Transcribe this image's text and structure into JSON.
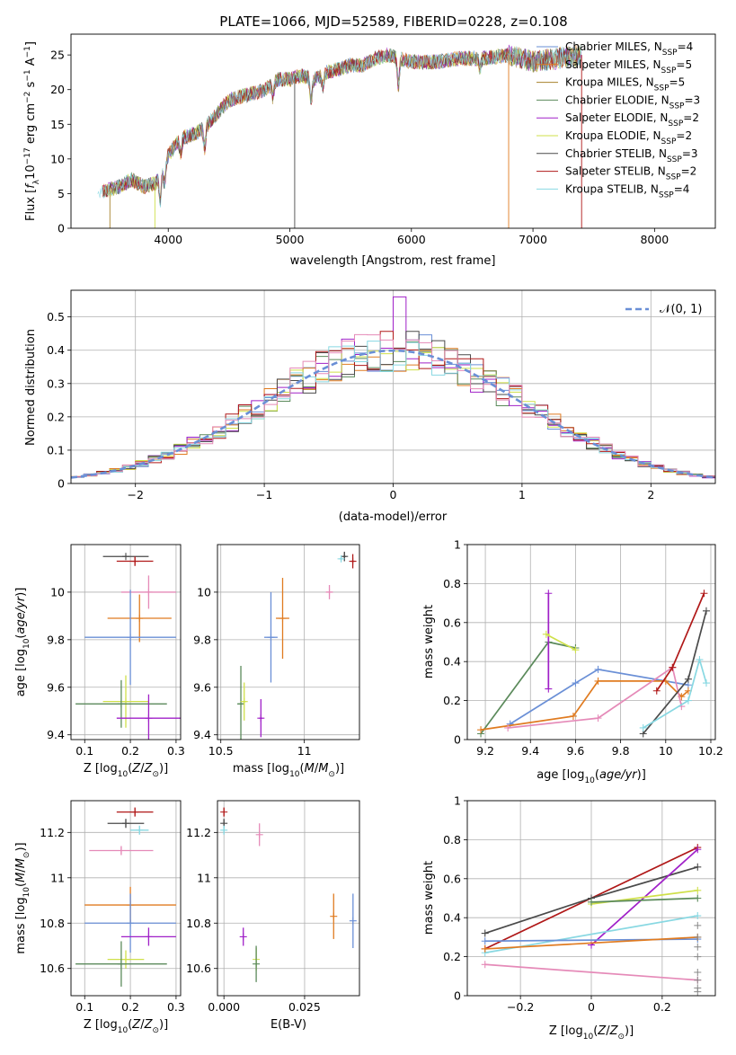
{
  "figure": {
    "title": "PLATE=1066, MJD=52589, FIBERID=0228, z=0.108",
    "series_colors": {
      "Chabrier MILES": "#6a8fd6",
      "Salpeter MILES": "#e07b20",
      "Kroupa MILES": "#a7822c",
      "Chabrier ELODIE": "#5b8a5b",
      "Salpeter ELODIE": "#a020c8",
      "Kroupa ELODIE": "#cfe04a",
      "Chabrier STELIB": "#4a4a4a",
      "Salpeter STELIB": "#b01818",
      "Kroupa STELIB": "#88d8e2",
      "pink": "#e58ab8"
    }
  },
  "chart_data": [
    {
      "id": "spectrum",
      "type": "line",
      "xlabel": "wavelength [Angstrom, rest frame]",
      "ylabel": "Flux [f_λ10^-17 erg cm^-2 s^-1 A^-1]",
      "xlim": [
        3200,
        8500
      ],
      "ylim": [
        0,
        28
      ],
      "xticks": [
        4000,
        5000,
        6000,
        7000,
        8000
      ],
      "yticks": [
        0,
        5,
        10,
        15,
        20,
        25
      ],
      "legend_position": "upper right",
      "legend": [
        {
          "name": "Chabrier MILES",
          "sub": "SSP",
          "n": 4,
          "color": "#6a8fd6"
        },
        {
          "name": "Salpeter MILES",
          "sub": "SSP",
          "n": 5,
          "color": "#e07b20"
        },
        {
          "name": "Kroupa MILES",
          "sub": "SSP",
          "n": 5,
          "color": "#a7822c"
        },
        {
          "name": "Chabrier ELODIE",
          "sub": "SSP",
          "n": 3,
          "color": "#5b8a5b"
        },
        {
          "name": "Salpeter ELODIE",
          "sub": "SSP",
          "n": 2,
          "color": "#a020c8"
        },
        {
          "name": "Kroupa ELODIE",
          "sub": "SSP",
          "n": 2,
          "color": "#cfe04a"
        },
        {
          "name": "Chabrier STELIB",
          "sub": "SSP",
          "n": 3,
          "color": "#4a4a4a"
        },
        {
          "name": "Salpeter STELIB",
          "sub": "SSP",
          "n": 2,
          "color": "#b01818"
        },
        {
          "name": "Kroupa STELIB",
          "sub": "SSP",
          "n": 4,
          "color": "#88d8e2"
        }
      ],
      "continuum": {
        "x": [
          3400,
          3500,
          3600,
          3700,
          3800,
          3900,
          4000,
          4100,
          4200,
          4300,
          4400,
          4500,
          4600,
          4700,
          4800,
          4900,
          5000,
          5100,
          5200,
          5300,
          5400,
          5500,
          5600,
          5700,
          5800,
          5900,
          6000,
          6200,
          6400,
          6600,
          6800,
          7000,
          7200,
          7400
        ],
        "y": [
          5.0,
          5.5,
          6.0,
          7.0,
          6.0,
          6.5,
          10.5,
          13.0,
          13.5,
          14.5,
          16.5,
          18.5,
          19.0,
          19.5,
          20.0,
          21.5,
          21.5,
          22.0,
          21.5,
          22.5,
          23.0,
          23.5,
          23.5,
          24.5,
          25.0,
          24.5,
          24.0,
          24.0,
          24.5,
          24.5,
          25.0,
          24.0,
          24.5,
          25.0
        ]
      },
      "absorption_features": [
        {
          "x": 3934,
          "depth": 4.0
        },
        {
          "x": 3969,
          "depth": 3.0
        },
        {
          "x": 4102,
          "depth": 2.5
        },
        {
          "x": 4300,
          "depth": 3.0
        },
        {
          "x": 4861,
          "depth": 2.0
        },
        {
          "x": 5175,
          "depth": 3.5
        },
        {
          "x": 5270,
          "depth": 2.0
        },
        {
          "x": 5893,
          "depth": 4.0
        },
        {
          "x": 6563,
          "depth": 1.5
        }
      ],
      "vertical_drop_lines": [
        {
          "x": 3520,
          "color": "#a7822c"
        },
        {
          "x": 3890,
          "color": "#cfe04a"
        },
        {
          "x": 5040,
          "color": "#4a4a4a"
        },
        {
          "x": 6800,
          "color": "#e07b20"
        },
        {
          "x": 7400,
          "color": "#b01818"
        }
      ]
    },
    {
      "id": "residual-histogram",
      "type": "histogram",
      "xlabel": "(data-model)/error",
      "ylabel": "Normed distribution",
      "xlim": [
        -2.5,
        2.5
      ],
      "ylim": [
        0,
        0.58
      ],
      "xticks": [
        -2,
        -1,
        0,
        1,
        2
      ],
      "yticks": [
        0.0,
        0.1,
        0.2,
        0.3,
        0.4,
        0.5
      ],
      "grid": true,
      "legend_position": "upper right",
      "legend": [
        {
          "name": "N(0,1)",
          "style": "dashed",
          "color": "#6a8fd6"
        }
      ],
      "bin_width": 0.1,
      "series_colors": [
        "#6a8fd6",
        "#e07b20",
        "#5b8a5b",
        "#a020c8",
        "#cfe04a",
        "#4a4a4a",
        "#b01818",
        "#88d8e2",
        "#e58ab8"
      ],
      "peak_value": 0.56
    },
    {
      "id": "age-vs-Z",
      "type": "errorbar",
      "xlabel": "Z [log10(Z/Z⊙)]",
      "ylabel": "age  [log10(age/yr)]",
      "xlim": [
        0.07,
        0.31
      ],
      "ylim": [
        9.38,
        10.2
      ],
      "xticks": [
        0.1,
        0.2,
        0.3
      ],
      "yticks": [
        9.4,
        9.6,
        9.8,
        10.0
      ],
      "grid": true,
      "points": [
        {
          "x": 0.19,
          "y": 10.15,
          "xerr": 0.05,
          "yerr": 0.0,
          "color": "#4a4a4a"
        },
        {
          "x": 0.21,
          "y": 10.13,
          "xerr": 0.04,
          "yerr": 0.02,
          "color": "#b01818"
        },
        {
          "x": 0.24,
          "y": 10.0,
          "xerr": 0.06,
          "yerr": 0.07,
          "color": "#e58ab8"
        },
        {
          "x": 0.22,
          "y": 9.89,
          "xerr": 0.07,
          "yerr": 0.1,
          "color": "#e07b20"
        },
        {
          "x": 0.2,
          "y": 9.81,
          "xerr": 0.1,
          "yerr": 0.2,
          "color": "#6a8fd6"
        },
        {
          "x": 0.19,
          "y": 9.54,
          "xerr": 0.05,
          "yerr": 0.11,
          "color": "#cfe04a"
        },
        {
          "x": 0.18,
          "y": 9.53,
          "xerr": 0.1,
          "yerr": 0.1,
          "color": "#5b8a5b"
        },
        {
          "x": 0.24,
          "y": 9.47,
          "xerr": 0.07,
          "yerr": 0.1,
          "color": "#a020c8"
        }
      ]
    },
    {
      "id": "age-vs-mass",
      "type": "errorbar",
      "xlabel": "mass [log10(M/M⊙)]",
      "xlim": [
        10.48,
        11.33
      ],
      "ylim": [
        9.38,
        10.2
      ],
      "xticks": [
        10.5,
        11.0
      ],
      "yticks": [
        9.4,
        9.6,
        9.8,
        10.0
      ],
      "grid": true,
      "points": [
        {
          "x": 11.24,
          "y": 10.15,
          "xerr": 0.01,
          "yerr": 0.02,
          "color": "#4a4a4a"
        },
        {
          "x": 11.29,
          "y": 10.13,
          "xerr": 0.01,
          "yerr": 0.03,
          "color": "#b01818"
        },
        {
          "x": 11.22,
          "y": 10.14,
          "xerr": 0.01,
          "yerr": 0.01,
          "color": "#88d8e2"
        },
        {
          "x": 11.15,
          "y": 10.0,
          "xerr": 0.02,
          "yerr": 0.03,
          "color": "#e58ab8"
        },
        {
          "x": 10.87,
          "y": 9.89,
          "xerr": 0.04,
          "yerr": 0.17,
          "color": "#e07b20"
        },
        {
          "x": 10.8,
          "y": 9.81,
          "xerr": 0.04,
          "yerr": 0.19,
          "color": "#6a8fd6"
        },
        {
          "x": 10.62,
          "y": 9.53,
          "xerr": 0.02,
          "yerr": 0.16,
          "color": "#5b8a5b"
        },
        {
          "x": 10.64,
          "y": 9.54,
          "xerr": 0.01,
          "yerr": 0.08,
          "color": "#cfe04a"
        },
        {
          "x": 10.74,
          "y": 9.47,
          "xerr": 0.01,
          "yerr": 0.08,
          "color": "#a020c8"
        }
      ]
    },
    {
      "id": "mass-weight-vs-age",
      "type": "line",
      "xlabel": "age  [log10(age/yr)]",
      "ylabel": "mass weight",
      "xlim": [
        9.12,
        10.22
      ],
      "ylim": [
        0,
        1.0
      ],
      "xticks": [
        9.2,
        9.4,
        9.6,
        9.8,
        10.0,
        10.2
      ],
      "yticks": [
        0.0,
        0.2,
        0.4,
        0.6,
        0.8,
        1.0
      ],
      "grid": true,
      "series": [
        {
          "color": "#5b8a5b",
          "x": [
            9.18,
            9.48,
            9.6
          ],
          "y": [
            0.03,
            0.5,
            0.47
          ]
        },
        {
          "color": "#a020c8",
          "x": [
            9.48,
            9.48
          ],
          "y": [
            0.26,
            0.75
          ]
        },
        {
          "color": "#cfe04a",
          "x": [
            9.47,
            9.6
          ],
          "y": [
            0.54,
            0.46
          ]
        },
        {
          "color": "#6a8fd6",
          "x": [
            9.31,
            9.6,
            9.7,
            10.1
          ],
          "y": [
            0.08,
            0.29,
            0.36,
            0.28
          ]
        },
        {
          "color": "#e07b20",
          "x": [
            9.18,
            9.59,
            9.7,
            10.0,
            10.07,
            10.1
          ],
          "y": [
            0.05,
            0.12,
            0.3,
            0.3,
            0.22,
            0.25
          ]
        },
        {
          "color": "#e58ab8",
          "x": [
            9.3,
            9.7,
            10.03,
            10.07
          ],
          "y": [
            0.06,
            0.11,
            0.37,
            0.17
          ]
        },
        {
          "color": "#b01818",
          "x": [
            9.96,
            10.03,
            10.17
          ],
          "y": [
            0.25,
            0.37,
            0.75
          ]
        },
        {
          "color": "#4a4a4a",
          "x": [
            9.9,
            10.1,
            10.18
          ],
          "y": [
            0.03,
            0.31,
            0.66
          ]
        },
        {
          "color": "#88d8e2",
          "x": [
            9.9,
            10.1,
            10.15,
            10.18
          ],
          "y": [
            0.06,
            0.2,
            0.41,
            0.29
          ]
        }
      ]
    },
    {
      "id": "mass-vs-Z",
      "type": "errorbar",
      "xlabel": "Z [log10(Z/Z⊙)]",
      "ylabel": "mass [log10(M/M⊙)]",
      "xlim": [
        0.07,
        0.31
      ],
      "ylim": [
        10.48,
        11.34
      ],
      "xticks": [
        0.1,
        0.2,
        0.3
      ],
      "yticks": [
        10.6,
        10.8,
        11.0,
        11.2
      ],
      "grid": true,
      "points": [
        {
          "x": 0.21,
          "y": 11.29,
          "xerr": 0.04,
          "yerr": 0.02,
          "color": "#b01818"
        },
        {
          "x": 0.19,
          "y": 11.24,
          "xerr": 0.04,
          "yerr": 0.02,
          "color": "#4a4a4a"
        },
        {
          "x": 0.22,
          "y": 11.21,
          "xerr": 0.02,
          "yerr": 0.02,
          "color": "#88d8e2"
        },
        {
          "x": 0.18,
          "y": 11.12,
          "xerr": 0.07,
          "yerr": 0.02,
          "color": "#e58ab8"
        },
        {
          "x": 0.2,
          "y": 10.88,
          "xerr": 0.1,
          "yerr": 0.08,
          "color": "#e07b20"
        },
        {
          "x": 0.2,
          "y": 10.8,
          "xerr": 0.1,
          "yerr": 0.13,
          "color": "#6a8fd6"
        },
        {
          "x": 0.24,
          "y": 10.74,
          "xerr": 0.06,
          "yerr": 0.04,
          "color": "#a020c8"
        },
        {
          "x": 0.19,
          "y": 10.64,
          "xerr": 0.04,
          "yerr": 0.04,
          "color": "#cfe04a"
        },
        {
          "x": 0.18,
          "y": 10.62,
          "xerr": 0.1,
          "yerr": 0.1,
          "color": "#5b8a5b"
        }
      ]
    },
    {
      "id": "mass-vs-EBV",
      "type": "errorbar",
      "xlabel": "E(B-V)",
      "xlim": [
        -0.002,
        0.042
      ],
      "ylim": [
        10.48,
        11.34
      ],
      "xticks": [
        0.0,
        0.025
      ],
      "xtick_labels": [
        "0.000",
        "0.025"
      ],
      "yticks": [
        10.6,
        10.8,
        11.0,
        11.2
      ],
      "grid": true,
      "points": [
        {
          "x": 0.0,
          "y": 11.29,
          "yerr": 0.02,
          "color": "#b01818"
        },
        {
          "x": 0.0,
          "y": 11.24,
          "yerr": 0.02,
          "color": "#4a4a4a"
        },
        {
          "x": 0.0,
          "y": 11.21,
          "yerr": 0.02,
          "color": "#88d8e2"
        },
        {
          "x": 0.011,
          "y": 11.19,
          "yerr": 0.05,
          "color": "#e58ab8"
        },
        {
          "x": 0.034,
          "y": 10.83,
          "yerr": 0.1,
          "color": "#e07b20"
        },
        {
          "x": 0.04,
          "y": 10.81,
          "yerr": 0.12,
          "color": "#6a8fd6"
        },
        {
          "x": 0.006,
          "y": 10.74,
          "yerr": 0.04,
          "color": "#a020c8"
        },
        {
          "x": 0.01,
          "y": 10.64,
          "yerr": 0.05,
          "color": "#cfe04a"
        },
        {
          "x": 0.01,
          "y": 10.62,
          "yerr": 0.08,
          "color": "#5b8a5b"
        }
      ]
    },
    {
      "id": "mass-weight-vs-Z",
      "type": "line",
      "xlabel": "Z [log10(Z/Z⊙)]",
      "ylabel": "mass weight",
      "xlim": [
        -0.35,
        0.35
      ],
      "ylim": [
        0,
        1.0
      ],
      "xticks": [
        -0.2,
        0.0,
        0.2
      ],
      "yticks": [
        0.0,
        0.2,
        0.4,
        0.6,
        0.8,
        1.0
      ],
      "grid": true,
      "series": [
        {
          "color": "#b01818",
          "x": [
            -0.3,
            0.3
          ],
          "y": [
            0.24,
            0.76
          ]
        },
        {
          "color": "#4a4a4a",
          "x": [
            -0.3,
            0.0,
            0.3
          ],
          "y": [
            0.32,
            0.5,
            0.66
          ]
        },
        {
          "color": "#a020c8",
          "x": [
            0.0,
            0.3
          ],
          "y": [
            0.26,
            0.75
          ]
        },
        {
          "color": "#cfe04a",
          "x": [
            0.0,
            0.3
          ],
          "y": [
            0.47,
            0.54
          ]
        },
        {
          "color": "#5b8a5b",
          "x": [
            0.0,
            0.3
          ],
          "y": [
            0.48,
            0.5
          ]
        },
        {
          "color": "#88d8e2",
          "x": [
            -0.3,
            0.3
          ],
          "y": [
            0.22,
            0.41
          ]
        },
        {
          "color": "#6a8fd6",
          "x": [
            -0.3,
            0.3
          ],
          "y": [
            0.28,
            0.29
          ]
        },
        {
          "color": "#e07b20",
          "x": [
            -0.3,
            0.3
          ],
          "y": [
            0.24,
            0.3
          ]
        },
        {
          "color": "#e58ab8",
          "x": [
            -0.3,
            0.3
          ],
          "y": [
            0.16,
            0.08
          ]
        }
      ],
      "edge_markers": {
        "x": 0.3,
        "y": [
          0.02,
          0.04,
          0.08,
          0.12,
          0.2,
          0.25,
          0.3,
          0.36
        ]
      }
    }
  ]
}
